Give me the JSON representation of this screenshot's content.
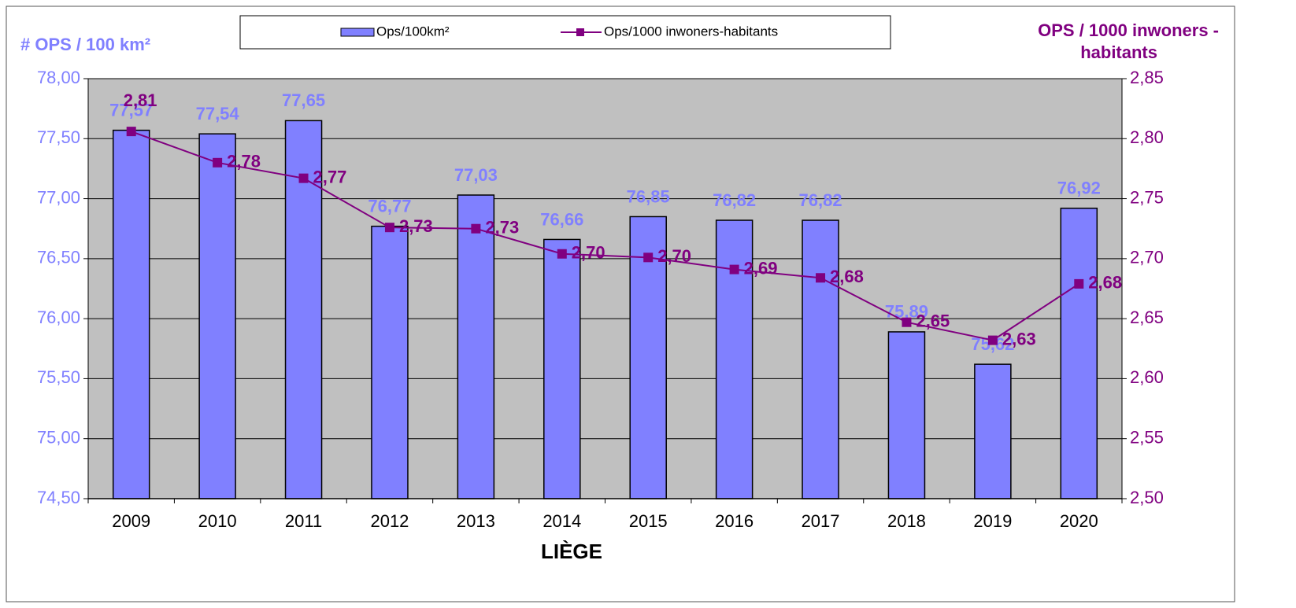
{
  "chart_data": {
    "type": "bar-line",
    "xlabel": "LIÈGE",
    "ylabel": "# OPS / 100 km²",
    "y2label": [
      "OPS / 1000 inwoners -",
      "habitants"
    ],
    "categories": [
      "2009",
      "2010",
      "2011",
      "2012",
      "2013",
      "2014",
      "2015",
      "2016",
      "2017",
      "2018",
      "2019",
      "2020"
    ],
    "series": [
      {
        "name": "Ops/100km²",
        "type": "bar",
        "color": "#8080ff",
        "values": [
          77.57,
          77.54,
          77.65,
          76.77,
          77.03,
          76.66,
          76.85,
          76.82,
          76.82,
          75.89,
          75.62,
          76.92
        ],
        "value_labels": [
          "77,57",
          "77,54",
          "77,65",
          "76,77",
          "77,03",
          "76,66",
          "76,85",
          "76,82",
          "76,82",
          "75,89",
          "75,62",
          "76,92"
        ]
      },
      {
        "name": "Ops/1000 inwoners-habitants",
        "type": "line",
        "axis": "y2",
        "color": "#800080",
        "values": [
          2.806,
          2.78,
          2.767,
          2.726,
          2.725,
          2.704,
          2.701,
          2.691,
          2.684,
          2.647,
          2.632,
          2.679
        ],
        "value_labels": [
          "2,81",
          "2,78",
          "2,77",
          "2,73",
          "2,73",
          "2,70",
          "2,70",
          "2,69",
          "2,68",
          "2,65",
          "2,63",
          "2,68"
        ]
      }
    ],
    "ylim": [
      74.5,
      78
    ],
    "yticks": [
      {
        "value": 74.5,
        "label": "74,50"
      },
      {
        "value": 75,
        "label": "75,00"
      },
      {
        "value": 75.5,
        "label": "75,50"
      },
      {
        "value": 76,
        "label": "76,00"
      },
      {
        "value": 76.5,
        "label": "76,50"
      },
      {
        "value": 77,
        "label": "77,00"
      },
      {
        "value": 77.5,
        "label": "77,50"
      },
      {
        "value": 78,
        "label": "78,00"
      }
    ],
    "y2lim": [
      2.5,
      2.85
    ],
    "y2ticks": [
      {
        "value": 2.5,
        "label": "2,50"
      },
      {
        "value": 2.55,
        "label": "2,55"
      },
      {
        "value": 2.6,
        "label": "2,60"
      },
      {
        "value": 2.65,
        "label": "2,65"
      },
      {
        "value": 2.7,
        "label": "2,70"
      },
      {
        "value": 2.75,
        "label": "2,75"
      },
      {
        "value": 2.8,
        "label": "2,80"
      },
      {
        "value": 2.85,
        "label": "2,85"
      }
    ],
    "grid": true,
    "plot_background": "#c0c0c0",
    "legend": "top"
  }
}
